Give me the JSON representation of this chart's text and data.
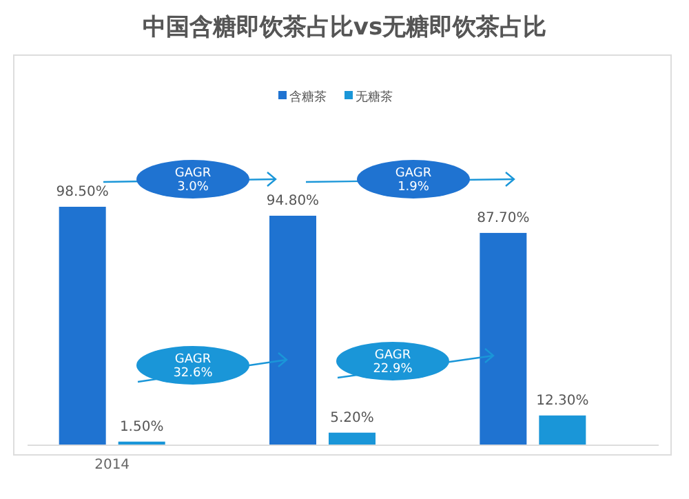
{
  "chart_data": {
    "type": "bar",
    "title": "中国含糖即饮茶占比vs无糖即饮茶占比",
    "categories": [
      "2014",
      null,
      null
    ],
    "series": [
      {
        "name": "含糖茶",
        "color": "#1f73d1",
        "values": [
          98.5,
          94.8,
          87.7
        ],
        "value_labels": [
          "98.50%",
          "94.80%",
          "87.70%"
        ]
      },
      {
        "name": "无糖茶",
        "color": "#1a96d8",
        "values": [
          1.5,
          5.2,
          12.3
        ],
        "value_labels": [
          "1.50%",
          "5.20%",
          "12.30%"
        ]
      }
    ],
    "legend": "top",
    "grid": false,
    "annotations": [
      "GAGR\n3.0%",
      "GAGR\n1.9%",
      "GAGR\n32.6%",
      "GAGR\n22.9%"
    ]
  }
}
